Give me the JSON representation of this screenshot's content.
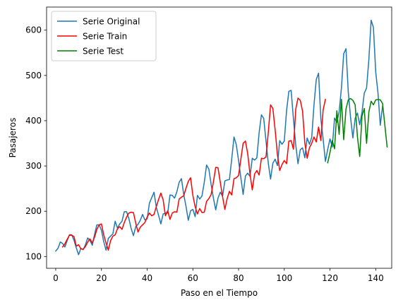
{
  "chart_data": {
    "type": "line",
    "title": "",
    "xlabel": "Paso en el Tiempo",
    "ylabel": "Pasajeros",
    "xlim": [
      -4,
      147
    ],
    "ylim": [
      74,
      651
    ],
    "xticks": [
      0,
      20,
      40,
      60,
      80,
      100,
      120,
      140
    ],
    "yticks": [
      100,
      200,
      300,
      400,
      500,
      600
    ],
    "grid": false,
    "legend_position": "top-left",
    "series": [
      {
        "name": "Serie Original",
        "color": "#1f77b4",
        "x_start": 0,
        "values": [
          112,
          118,
          132,
          129,
          121,
          135,
          148,
          148,
          136,
          119,
          104,
          118,
          115,
          126,
          141,
          135,
          125,
          149,
          170,
          170,
          158,
          133,
          114,
          140,
          145,
          150,
          178,
          163,
          172,
          178,
          199,
          199,
          184,
          162,
          146,
          166,
          171,
          180,
          193,
          181,
          183,
          218,
          230,
          242,
          209,
          191,
          172,
          194,
          196,
          196,
          236,
          235,
          229,
          243,
          264,
          272,
          237,
          211,
          180,
          201,
          204,
          188,
          235,
          227,
          234,
          264,
          302,
          293,
          259,
          229,
          203,
          229,
          242,
          233,
          267,
          269,
          270,
          315,
          364,
          347,
          312,
          274,
          237,
          278,
          284,
          277,
          317,
          313,
          318,
          374,
          413,
          405,
          355,
          306,
          271,
          306,
          315,
          301,
          356,
          348,
          355,
          422,
          465,
          467,
          404,
          347,
          305,
          336,
          340,
          318,
          362,
          348,
          363,
          435,
          491,
          505,
          404,
          359,
          310,
          337,
          360,
          342,
          406,
          396,
          420,
          472,
          548,
          559,
          463,
          407,
          362,
          405,
          417,
          391,
          419,
          461,
          472,
          535,
          622,
          606,
          508,
          461,
          390,
          432
        ]
      },
      {
        "name": "Serie Train",
        "color": "#ff0000",
        "x_start": 3,
        "values": [
          121,
          128,
          138,
          147,
          147,
          144,
          123,
          126,
          117,
          116,
          122,
          132,
          139,
          130,
          143,
          160,
          170,
          172,
          148,
          130,
          114,
          135,
          145,
          148,
          161,
          166,
          160,
          175,
          187,
          196,
          198,
          197,
          174,
          154,
          165,
          170,
          175,
          187,
          196,
          190,
          193,
          210,
          226,
          240,
          225,
          190,
          201,
          182,
          196,
          199,
          198,
          227,
          231,
          234,
          251,
          266,
          274,
          235,
          210,
          194,
          206,
          197,
          198,
          222,
          228,
          237,
          265,
          297,
          296,
          264,
          232,
          204,
          228,
          244,
          236,
          272,
          274,
          279,
          315,
          350,
          355,
          327,
          282,
          247,
          282,
          290,
          280,
          317,
          316,
          320,
          374,
          435,
          427,
          380,
          325,
          290,
          303,
          312,
          305,
          355,
          356,
          337,
          425,
          450,
          445,
          421,
          350,
          317,
          340,
          350,
          364,
          353,
          386,
          356,
          424,
          447
        ]
      },
      {
        "name": "Serie Test",
        "color": "#008000",
        "x_start": 119,
        "values": [
          307,
          330,
          356,
          338,
          422,
          370,
          447,
          358,
          426,
          446,
          449,
          445,
          435,
          365,
          321,
          410,
          427,
          350,
          419,
          443,
          435,
          446,
          447,
          446,
          438,
          390,
          342
        ]
      }
    ]
  }
}
